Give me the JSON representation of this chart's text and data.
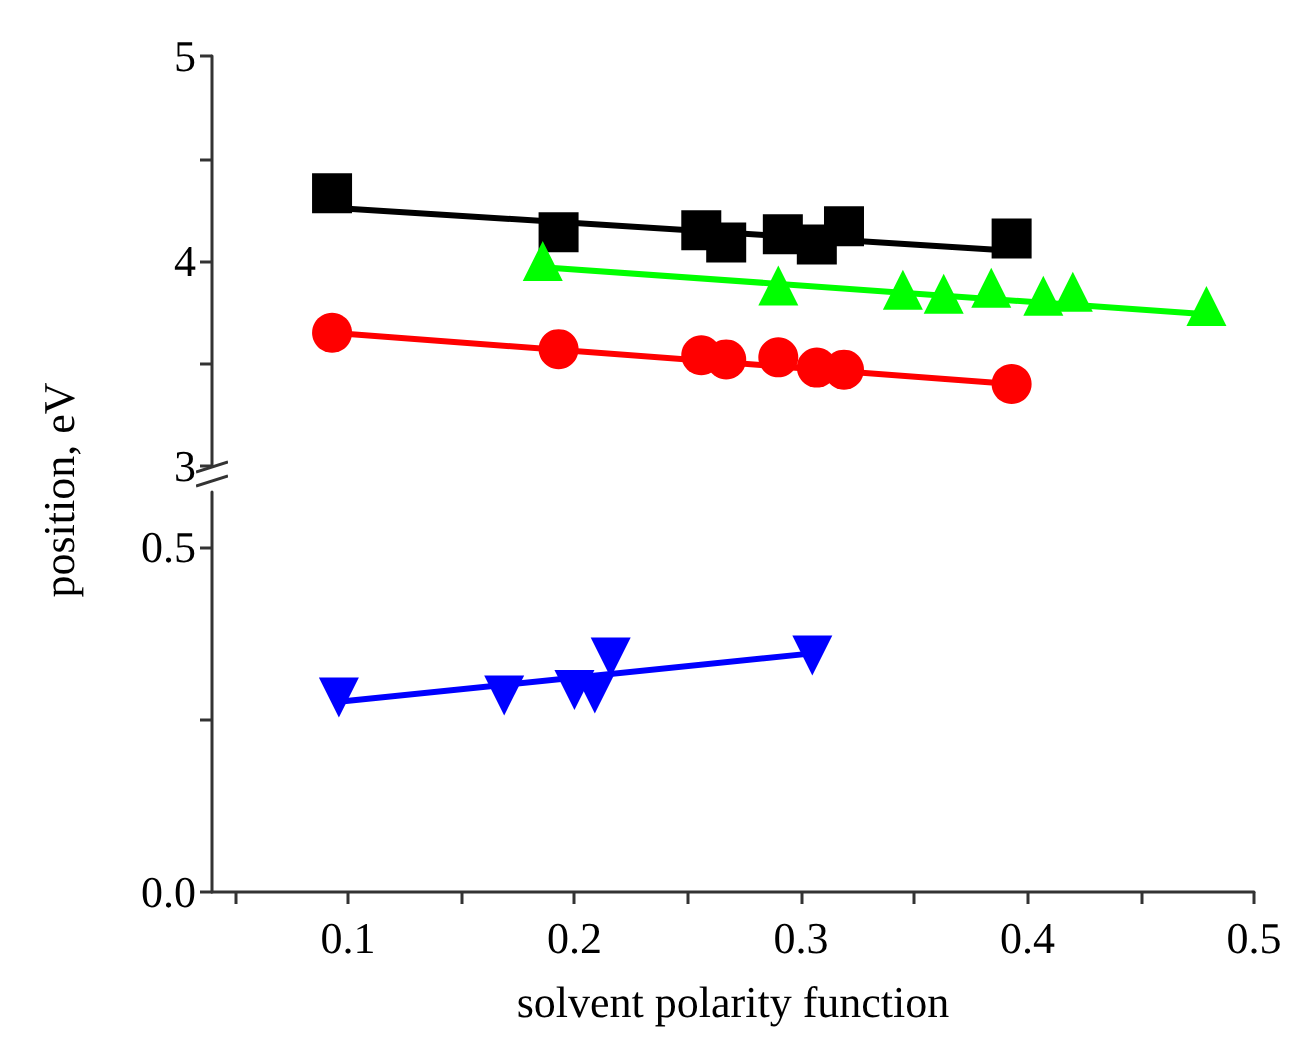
{
  "chart_data": [
    {
      "type": "scatter",
      "ylabel": "position, eV",
      "xlim": [
        0.04,
        0.5
      ],
      "ylim": [
        3,
        5
      ],
      "yticks": [
        3,
        {
          "value": 3.5,
          "label": null
        },
        4,
        {
          "value": 4.5,
          "label": null
        },
        5
      ],
      "tick_labels": "y",
      "grid": false,
      "series": [
        {
          "marker": "square",
          "color": "#000000",
          "x": [
            0.093,
            0.193,
            0.256,
            0.267,
            0.292,
            0.307,
            0.319,
            0.393
          ],
          "values": [
            4.33,
            4.14,
            4.15,
            4.09,
            4.13,
            4.08,
            4.17,
            4.11
          ]
        },
        {
          "type": "line",
          "marker": "none",
          "color": "#000000",
          "x": [
            0.093,
            0.393
          ],
          "values": [
            4.26,
            4.05
          ]
        },
        {
          "marker": "triangle",
          "color": "#00ff00",
          "x": [
            0.186,
            0.29,
            0.345,
            0.363,
            0.384,
            0.407,
            0.42,
            0.479
          ],
          "values": [
            4.0,
            3.88,
            3.86,
            3.84,
            3.87,
            3.83,
            3.85,
            3.78
          ]
        },
        {
          "type": "line",
          "marker": "none",
          "color": "#00ff00",
          "x": [
            0.186,
            0.479
          ],
          "values": [
            3.97,
            3.74
          ]
        },
        {
          "marker": "circle",
          "color": "#ff0000",
          "x": [
            0.093,
            0.193,
            0.256,
            0.267,
            0.29,
            0.307,
            0.319,
            0.393
          ],
          "values": [
            3.65,
            3.57,
            3.54,
            3.52,
            3.53,
            3.48,
            3.47,
            3.4
          ]
        },
        {
          "type": "line",
          "marker": "none",
          "color": "#ff0000",
          "x": [
            0.093,
            0.393
          ],
          "values": [
            3.65,
            3.4
          ]
        }
      ]
    },
    {
      "type": "scatter",
      "xlabel": "solvent polarity function",
      "xlim": [
        0.04,
        0.5
      ],
      "xticks": [
        {
          "value": 0.05,
          "label": null
        },
        0.1,
        {
          "value": 0.15,
          "label": null
        },
        0.2,
        {
          "value": 0.25,
          "label": null
        },
        0.3,
        {
          "value": 0.35,
          "label": null
        },
        0.4,
        {
          "value": 0.45,
          "label": null
        },
        0.5
      ],
      "ylim": [
        0,
        0.58
      ],
      "yticks": [
        {
          "value": 0,
          "label": "0.0"
        },
        {
          "value": 0.25,
          "label": null
        },
        0.5
      ],
      "grid": false,
      "series": [
        {
          "marker": "triangle-down",
          "color": "#0000ff",
          "x": [
            0.096,
            0.169,
            0.2,
            0.209,
            0.216,
            0.305
          ],
          "values": [
            0.282,
            0.285,
            0.293,
            0.288,
            0.34,
            0.343
          ]
        },
        {
          "type": "line",
          "marker": "none",
          "color": "#0000ff",
          "x": [
            0.096,
            0.305
          ],
          "values": [
            0.276,
            0.346
          ]
        }
      ]
    }
  ]
}
